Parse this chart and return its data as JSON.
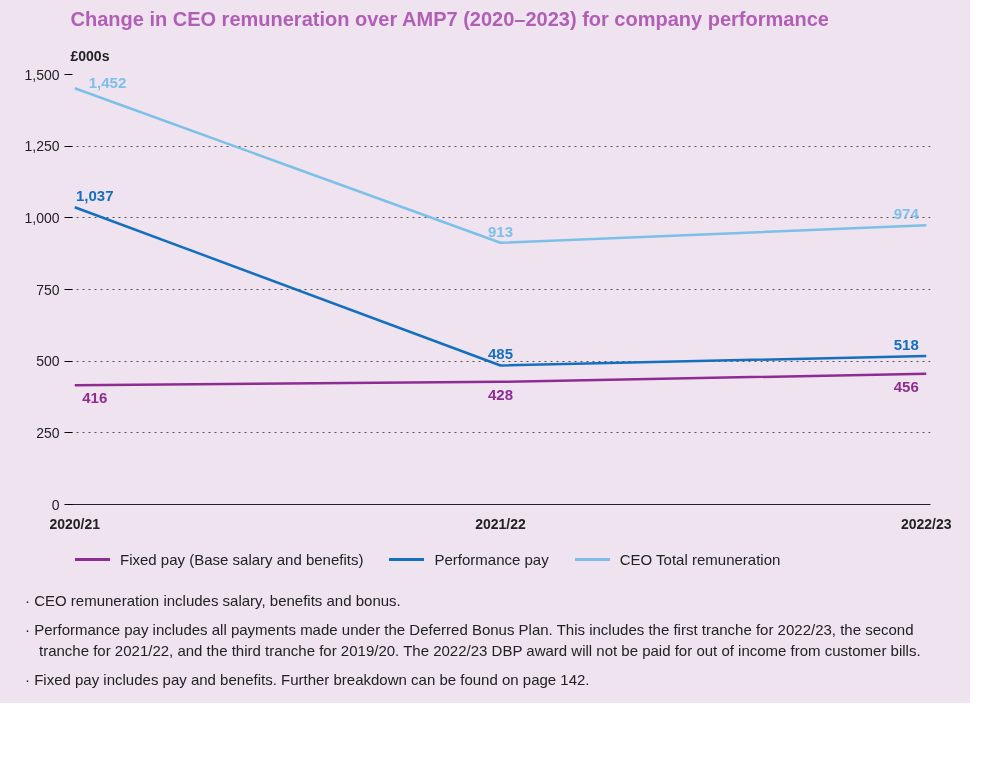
{
  "chart_data": {
    "type": "line",
    "title": "Change in CEO remuneration over AMP7 (2020–2023) for company performance",
    "ylabel": "£000s",
    "categories": [
      "2020/21",
      "2021/22",
      "2022/23"
    ],
    "series": [
      {
        "name": "Fixed pay (Base salary and benefits)",
        "color": "#8e2c91",
        "values": [
          416,
          428,
          456
        ],
        "value_labels": [
          "416",
          "428",
          "456"
        ]
      },
      {
        "name": "Performance pay",
        "color": "#1470bd",
        "values": [
          1037,
          485,
          518
        ],
        "value_labels": [
          "1,037",
          "485",
          "518"
        ]
      },
      {
        "name": "CEO Total remuneration",
        "color": "#7cc0ea",
        "values": [
          1452,
          913,
          974
        ],
        "value_labels": [
          "1,452",
          "913",
          "974"
        ]
      }
    ],
    "ylim": [
      0,
      1500
    ],
    "yticks": [
      {
        "value": 0,
        "label": "0"
      },
      {
        "value": 250,
        "label": "250"
      },
      {
        "value": 500,
        "label": "500"
      },
      {
        "value": 750,
        "label": "750"
      },
      {
        "value": 1000,
        "label": "1,000"
      },
      {
        "value": 1250,
        "label": "1,250"
      },
      {
        "value": 1500,
        "label": "1,500"
      }
    ],
    "grid": "y",
    "legend": "bottom",
    "marker": "none",
    "line_style": "solid",
    "annotations": [
      "· CEO remuneration includes salary, benefits and bonus.",
      "· Performance pay includes all payments made under the Deferred Bonus Plan. This includes the first tranche for 2022/23, the second tranche for 2021/22, and the third tranche for 2019/20. The 2022/23 DBP award will not be paid for out of income from customer bills.",
      "· Fixed pay includes pay and benefits. Further breakdown can be found on page 142."
    ]
  }
}
